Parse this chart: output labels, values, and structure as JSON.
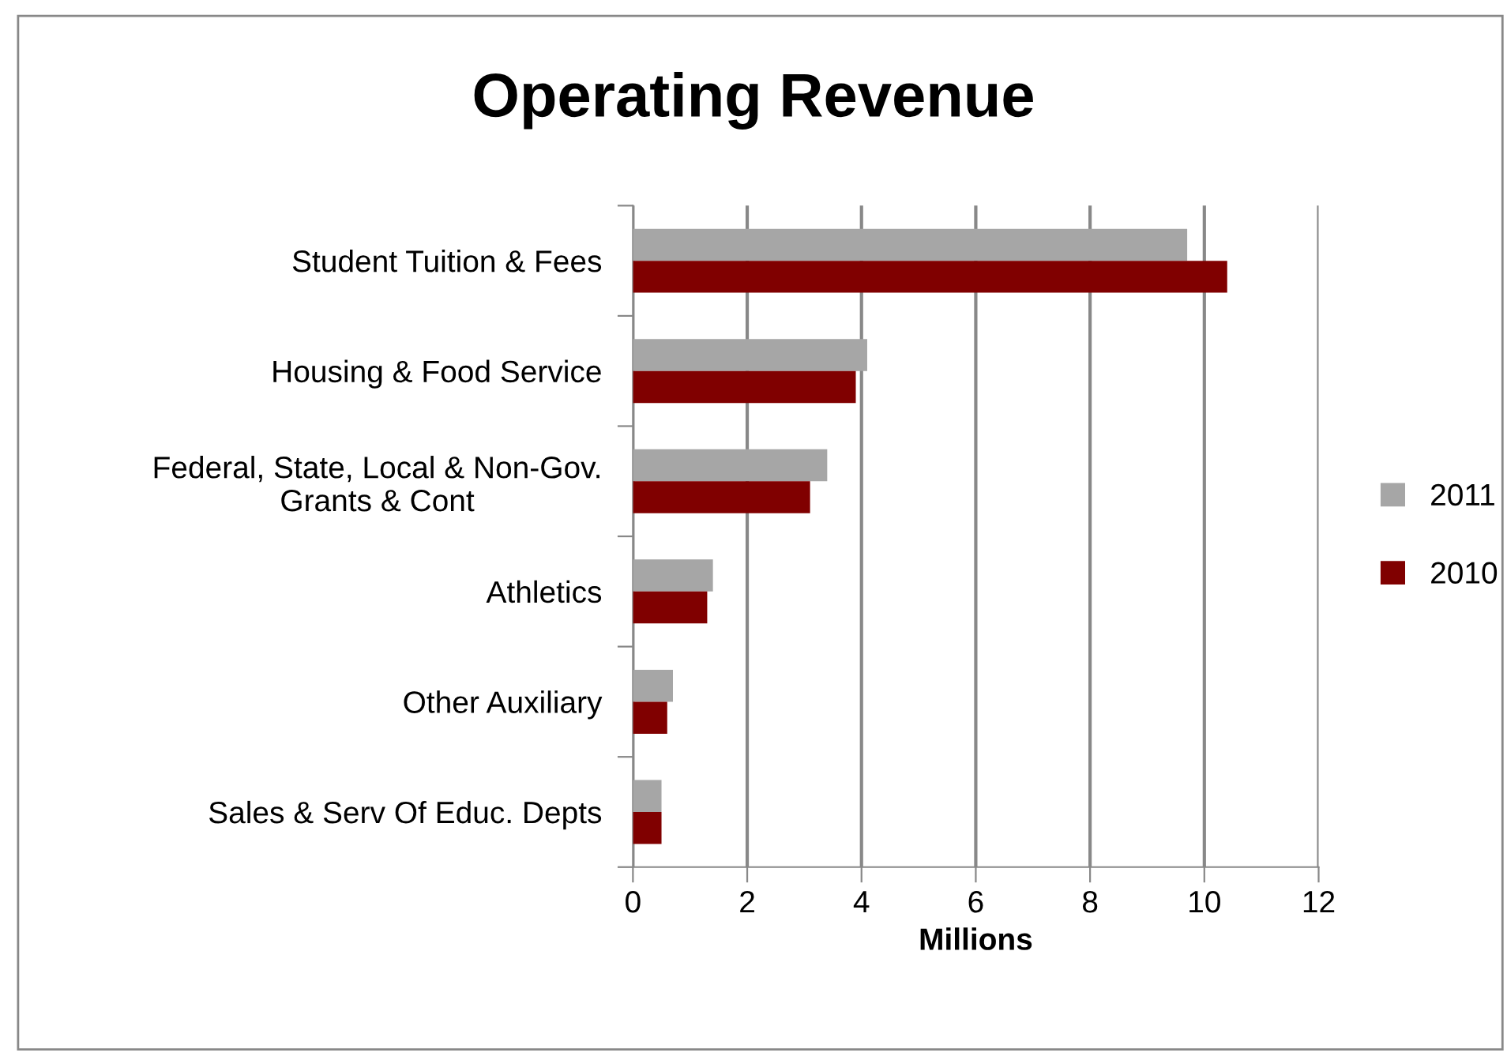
{
  "chart_data": {
    "type": "bar",
    "orientation": "horizontal",
    "title": "Operating Revenue",
    "xlabel": "Millions",
    "categories": [
      "Student Tuition & Fees",
      "Housing & Food Service",
      "Federal, State, Local & Non-Gov.\nGrants & Cont",
      "Athletics",
      "Other Auxiliary",
      "Sales & Serv Of Educ. Depts"
    ],
    "series": [
      {
        "name": "2011",
        "color": "#a6a6a6",
        "values": [
          9.7,
          4.1,
          3.4,
          1.4,
          0.7,
          0.5
        ]
      },
      {
        "name": "2010",
        "color": "#800000",
        "values": [
          10.4,
          3.9,
          3.1,
          1.3,
          0.6,
          0.5
        ]
      }
    ],
    "xlim": [
      0,
      12
    ],
    "xticks": [
      0,
      2,
      4,
      6,
      8,
      10,
      12
    ],
    "grid": "x",
    "legend": "right"
  }
}
